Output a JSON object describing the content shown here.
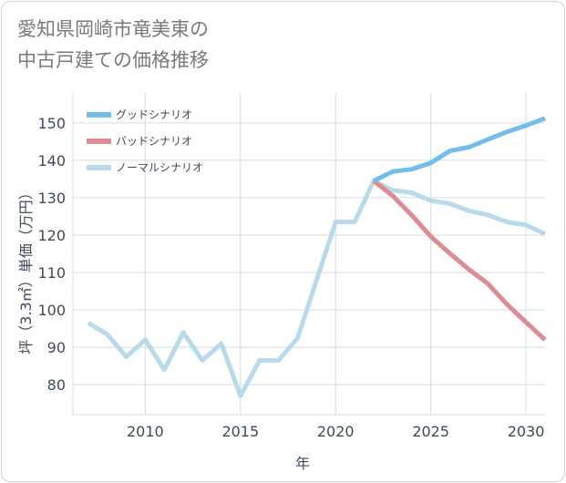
{
  "title": {
    "line1": "愛知県岡崎市竜美東の",
    "line2": "中古戸建ての価格推移"
  },
  "chart_data": {
    "type": "line",
    "xlabel": "年",
    "ylabel": "坪（3.3㎡）単価（万円）",
    "xlim": [
      2006.2,
      2031
    ],
    "ylim": [
      72,
      158
    ],
    "xticks": [
      2010,
      2015,
      2020,
      2025,
      2030
    ],
    "yticks": [
      80,
      90,
      100,
      110,
      120,
      130,
      140,
      150
    ],
    "grid": true,
    "legend_position": "top-left",
    "series": [
      {
        "name": "グッドシナリオ",
        "color": "#72bde9",
        "x": [
          2022,
          2023,
          2024,
          2025,
          2026,
          2027,
          2028,
          2029,
          2030,
          2031
        ],
        "values": [
          134.5,
          137,
          137.6,
          139.3,
          142.5,
          143.5,
          145.6,
          147.6,
          149.3,
          151.2
        ]
      },
      {
        "name": "バッドシナリオ",
        "color": "#dc8c95",
        "x": [
          2022,
          2023,
          2024,
          2025,
          2026,
          2027,
          2028,
          2029,
          2030,
          2031
        ],
        "values": [
          134.5,
          130.5,
          125.3,
          119.6,
          115.1,
          110.8,
          107,
          101.5,
          96.7,
          92
        ]
      },
      {
        "name": "ノーマルシナリオ",
        "color": "#b9dbe9",
        "x": [
          2007,
          2008,
          2009,
          2010,
          2011,
          2012,
          2013,
          2014,
          2015,
          2016,
          2017,
          2018,
          2019,
          2020,
          2021,
          2022,
          2023,
          2024,
          2025,
          2026,
          2027,
          2028,
          2029,
          2030,
          2031
        ],
        "values": [
          96.5,
          93.5,
          87.5,
          92,
          84,
          94,
          86.5,
          91,
          77,
          86.5,
          86.5,
          92.5,
          108,
          123.5,
          123.5,
          134.5,
          132,
          131.3,
          129.2,
          128.4,
          126.5,
          125.4,
          123.5,
          122.7,
          120.3
        ]
      }
    ]
  }
}
